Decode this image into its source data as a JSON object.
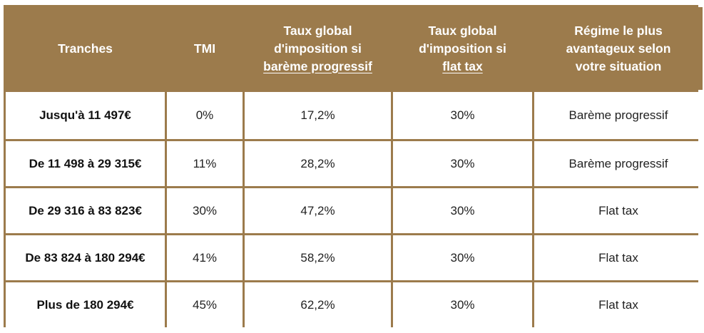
{
  "table": {
    "headers": {
      "tranches": "Tranches",
      "tmi": "TMI",
      "taux_bareme": {
        "line1": "Taux global",
        "line2": "d'imposition si",
        "line3": "barème progressif"
      },
      "taux_flat": {
        "line1": "Taux global",
        "line2": "d'imposition si",
        "line3": "flat tax"
      },
      "regime": {
        "line1": "Régime le plus",
        "line2": "avantageux selon",
        "line3": "votre situation"
      }
    },
    "rows": [
      [
        "Jusqu'à 11 497€",
        "0%",
        "17,2%",
        "30%",
        "Barème progressif"
      ],
      [
        "De 11 498 à 29 315€",
        "11%",
        "28,2%",
        "30%",
        "Barème progressif"
      ],
      [
        "De 29 316 à 83 823€",
        "30%",
        "47,2%",
        "30%",
        "Flat tax"
      ],
      [
        "De 83 824 à 180 294€",
        "41%",
        "58,2%",
        "30%",
        "Flat tax"
      ],
      [
        "Plus de 180 294€",
        "45%",
        "62,2%",
        "30%",
        "Flat tax"
      ]
    ]
  },
  "colors": {
    "header_background": "#9c7b4c",
    "header_text": "#ffffff",
    "grid_lines": "#9c7b4c",
    "cell_background": "#ffffff"
  }
}
